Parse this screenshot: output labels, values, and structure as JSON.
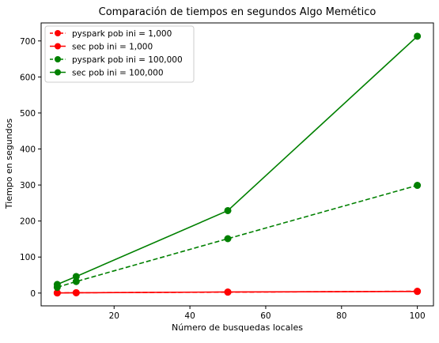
{
  "chart_data": {
    "type": "line",
    "title": "Comparación de tiempos en segundos Algo Memético",
    "xlabel": "Número de busquedas locales",
    "ylabel": "Tiempo en segundos",
    "xlim": [
      0.75,
      104.25
    ],
    "ylim": [
      -35.5,
      750
    ],
    "xticks": [
      20,
      40,
      60,
      80,
      100
    ],
    "yticks": [
      0,
      100,
      200,
      300,
      400,
      500,
      600,
      700
    ],
    "grid": false,
    "legend_position": "top-left",
    "x": [
      5,
      10,
      50,
      100
    ],
    "series": [
      {
        "name": "pyspark pob ini = 1,000",
        "values": [
          0.5,
          1.0,
          2.5,
          5.0
        ],
        "color": "#ff0000",
        "linestyle": "dashed",
        "marker": "circle"
      },
      {
        "name": "sec pob ini = 1,000",
        "values": [
          0.3,
          0.8,
          3.0,
          4.5
        ],
        "color": "#ff0000",
        "linestyle": "solid",
        "marker": "circle"
      },
      {
        "name": "pyspark pob ini = 100,000",
        "values": [
          16,
          32,
          151,
          299
        ],
        "color": "#008000",
        "linestyle": "dashed",
        "marker": "circle"
      },
      {
        "name": "sec pob ini = 100,000",
        "values": [
          24,
          46,
          229,
          713
        ],
        "color": "#008000",
        "linestyle": "solid",
        "marker": "circle"
      }
    ]
  }
}
